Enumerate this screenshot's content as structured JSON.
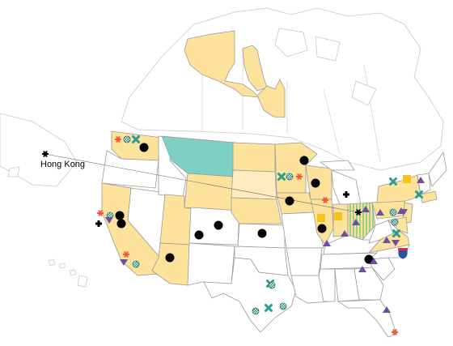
{
  "map": {
    "label_hong_kong": "Hong Kong",
    "colors": {
      "yellow": "#fde29b",
      "pale_yellow": "#fdecc0",
      "teal": "#7ecfc4",
      "striped": "#b8d98a",
      "dot": "#000000",
      "asterisk_red": "#f05a3a",
      "x_teal": "#2a9d8f",
      "triangle": "#6b4fa0",
      "square": "#f7c21c"
    },
    "symbols": [
      "black-dot",
      "red-asterisk",
      "teal-x",
      "checkered-dot",
      "purple-triangle-up",
      "purple-triangle-down",
      "yellow-square",
      "plus-cross",
      "black-asterisk",
      "interstate-95-shield"
    ]
  }
}
